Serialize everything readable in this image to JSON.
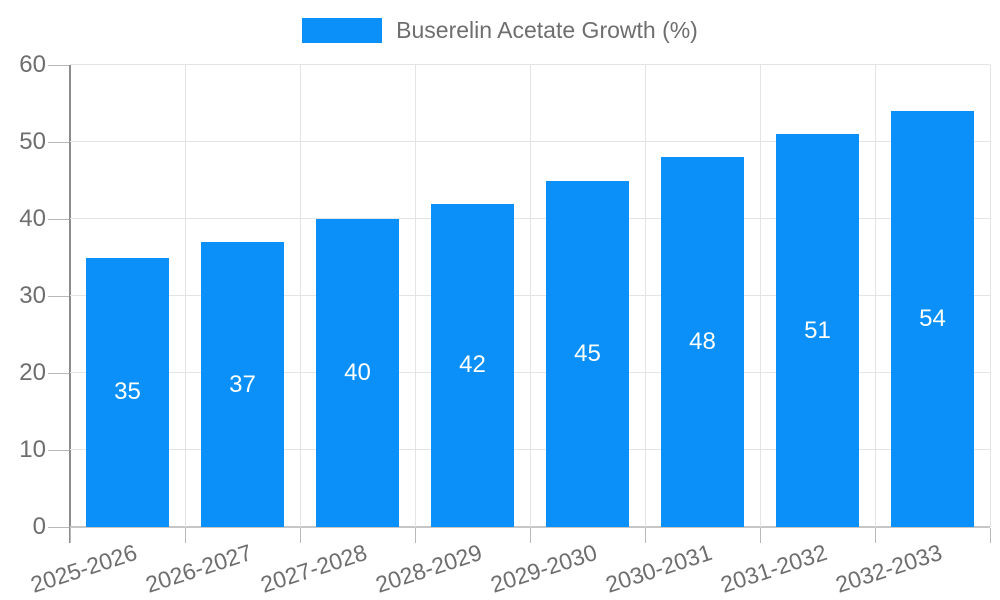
{
  "legend": {
    "label": "Buserelin Acetate Growth (%)"
  },
  "chart_data": {
    "type": "bar",
    "title": "Buserelin Acetate Growth (%)",
    "categories": [
      "2025-2026",
      "2026-2027",
      "2027-2028",
      "2028-2029",
      "2029-2030",
      "2030-2031",
      "2031-2032",
      "2032-2033"
    ],
    "series": [
      {
        "name": "Buserelin Acetate Growth (%)",
        "values": [
          35,
          37,
          40,
          42,
          45,
          48,
          51,
          54
        ]
      }
    ],
    "xlabel": "",
    "ylabel": "",
    "ylim": [
      0,
      60
    ],
    "yticks": [
      0,
      10,
      20,
      30,
      40,
      50,
      60
    ],
    "grid": true,
    "legend_position": "top-center",
    "value_label_position": "inside-center",
    "x_label_rotation_deg": -18,
    "colors": {
      "bar": "#0a90f8",
      "grid_line": "#e4e4e4",
      "axis_line": "#8c8c8c",
      "baseline": "#c6c6c6",
      "tick": "#b8b8b8",
      "label_text": "#6e6e6e",
      "value_text": "#ffffff",
      "background": "#ffffff"
    }
  }
}
